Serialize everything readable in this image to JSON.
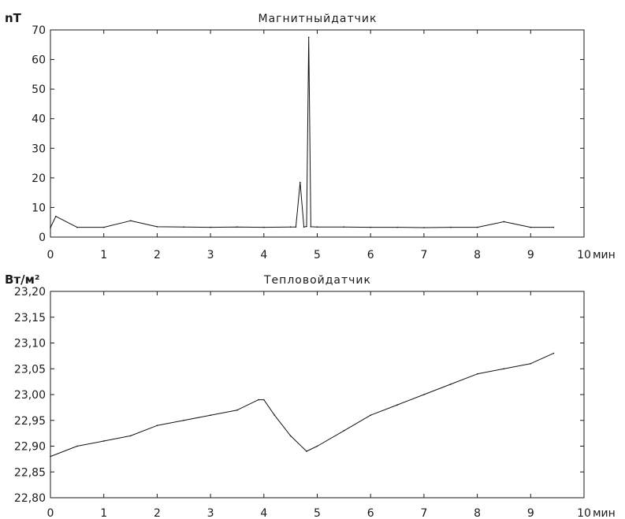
{
  "chart_data": [
    {
      "type": "line",
      "title": "Магнитныйдатчик",
      "ylabel": "nT",
      "xlabel": "мин",
      "xlim": [
        0,
        10
      ],
      "ylim": [
        0,
        70
      ],
      "xticks": [
        0,
        1,
        2,
        3,
        4,
        5,
        6,
        7,
        8,
        9,
        10
      ],
      "xtick_labels": [
        "0",
        "1",
        "2",
        "3",
        "4",
        "5",
        "6",
        "7",
        "8",
        "9",
        "10"
      ],
      "yticks": [
        0,
        10,
        20,
        30,
        40,
        50,
        60,
        70
      ],
      "ytick_labels": [
        "0",
        "10",
        "20",
        "30",
        "40",
        "50",
        "60",
        "70"
      ],
      "grid": false,
      "series": [
        {
          "x": [
            0,
            0.1,
            0.5,
            1.0,
            1.5,
            2.0,
            2.5,
            3.0,
            3.5,
            4.0,
            4.5,
            4.6,
            4.68,
            4.75,
            4.8,
            4.84,
            4.88,
            5.0,
            5.5,
            6.0,
            6.5,
            7.0,
            7.5,
            8.0,
            8.5,
            9.0,
            9.43
          ],
          "y": [
            3.2,
            7.0,
            3.3,
            3.3,
            5.5,
            3.5,
            3.4,
            3.3,
            3.4,
            3.3,
            3.4,
            3.4,
            18.5,
            3.4,
            3.6,
            67.5,
            3.5,
            3.4,
            3.4,
            3.3,
            3.3,
            3.2,
            3.3,
            3.3,
            5.2,
            3.3,
            3.3
          ]
        }
      ]
    },
    {
      "type": "line",
      "title": "Тепловойдатчик",
      "ylabel": "Вт/м²",
      "xlabel": "мин",
      "xlim": [
        0,
        10
      ],
      "ylim": [
        22.8,
        23.2
      ],
      "xticks": [
        0,
        1,
        2,
        3,
        4,
        5,
        6,
        7,
        8,
        9,
        10
      ],
      "xtick_labels": [
        "0",
        "1",
        "2",
        "3",
        "4",
        "5",
        "6",
        "7",
        "8",
        "9",
        "10"
      ],
      "yticks": [
        22.8,
        22.85,
        22.9,
        22.95,
        23.0,
        23.05,
        23.1,
        23.15,
        23.2
      ],
      "ytick_labels": [
        "22,80",
        "22,85",
        "22,90",
        "22,95",
        "23,00",
        "23,05",
        "23,10",
        "23,15",
        "23,20"
      ],
      "grid": false,
      "series": [
        {
          "x": [
            0,
            0.5,
            1.0,
            1.5,
            2.0,
            2.5,
            3.0,
            3.5,
            3.9,
            4.0,
            4.2,
            4.5,
            4.8,
            5.0,
            5.5,
            6.0,
            6.5,
            7.0,
            7.5,
            8.0,
            8.5,
            9.0,
            9.43
          ],
          "y": [
            22.88,
            22.9,
            22.91,
            22.92,
            22.94,
            22.95,
            22.96,
            22.97,
            22.99,
            22.99,
            22.96,
            22.92,
            22.89,
            22.9,
            22.93,
            22.96,
            22.98,
            23.0,
            23.02,
            23.04,
            23.05,
            23.06,
            23.08
          ]
        }
      ]
    }
  ]
}
